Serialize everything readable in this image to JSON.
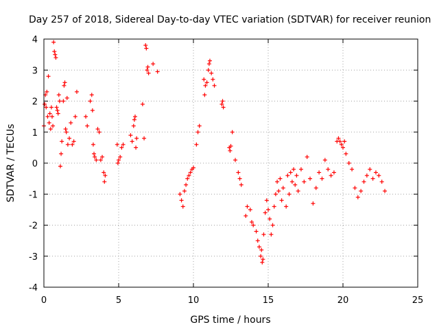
{
  "chart_data": {
    "type": "scatter",
    "title": "Day 257 of 2018, Sidereal Day-to-day VTEC variation (SDTVAR) for receiver reunion",
    "xlabel": "GPS time / hours",
    "ylabel": "SDTVAR / TECUs",
    "xlim": [
      0,
      25
    ],
    "ylim": [
      -4,
      4
    ],
    "xticks": [
      0,
      5,
      10,
      15,
      20,
      25
    ],
    "yticks": [
      -4,
      -3,
      -2,
      -1,
      0,
      1,
      2,
      3,
      4
    ],
    "xtick_labels": [
      "0",
      "5",
      "10",
      "15",
      "20",
      "25"
    ],
    "ytick_labels": [
      "-4",
      "-3",
      "-2",
      "-1",
      "0",
      "1",
      "2",
      "3",
      "4"
    ],
    "grid": true,
    "marker": "+",
    "color": "#ff0000",
    "series": [
      {
        "name": "SDTVAR",
        "points": [
          [
            0.0,
            1.2
          ],
          [
            0.05,
            1.9
          ],
          [
            0.1,
            2.2
          ],
          [
            0.15,
            1.8
          ],
          [
            0.2,
            2.3
          ],
          [
            0.25,
            1.5
          ],
          [
            0.3,
            2.8
          ],
          [
            0.35,
            1.3
          ],
          [
            0.4,
            1.6
          ],
          [
            0.45,
            1.1
          ],
          [
            0.5,
            1.8
          ],
          [
            0.55,
            1.5
          ],
          [
            0.6,
            1.2
          ],
          [
            0.65,
            3.9
          ],
          [
            0.7,
            3.6
          ],
          [
            0.75,
            3.5
          ],
          [
            0.8,
            3.4
          ],
          [
            0.85,
            1.8
          ],
          [
            0.9,
            1.7
          ],
          [
            0.95,
            1.6
          ],
          [
            1.0,
            2.2
          ],
          [
            1.05,
            2.0
          ],
          [
            1.1,
            -0.1
          ],
          [
            1.15,
            0.3
          ],
          [
            1.2,
            0.7
          ],
          [
            1.3,
            2.0
          ],
          [
            1.35,
            2.5
          ],
          [
            1.4,
            2.6
          ],
          [
            1.45,
            1.1
          ],
          [
            1.5,
            1.0
          ],
          [
            1.55,
            2.1
          ],
          [
            1.6,
            0.6
          ],
          [
            1.7,
            0.8
          ],
          [
            1.8,
            1.3
          ],
          [
            1.9,
            0.6
          ],
          [
            2.0,
            0.7
          ],
          [
            2.1,
            1.5
          ],
          [
            2.2,
            2.3
          ],
          [
            2.8,
            1.5
          ],
          [
            2.9,
            1.2
          ],
          [
            3.1,
            2.0
          ],
          [
            3.2,
            2.2
          ],
          [
            3.25,
            1.7
          ],
          [
            3.3,
            0.6
          ],
          [
            3.35,
            0.3
          ],
          [
            3.4,
            0.2
          ],
          [
            3.5,
            0.1
          ],
          [
            3.6,
            1.1
          ],
          [
            3.7,
            1.0
          ],
          [
            3.8,
            0.1
          ],
          [
            3.9,
            0.2
          ],
          [
            4.0,
            -0.3
          ],
          [
            4.05,
            -0.6
          ],
          [
            4.1,
            -0.4
          ],
          [
            4.9,
            0.6
          ],
          [
            4.95,
            0.0
          ],
          [
            5.0,
            0.1
          ],
          [
            5.1,
            0.2
          ],
          [
            5.2,
            0.5
          ],
          [
            5.3,
            0.6
          ],
          [
            5.8,
            0.9
          ],
          [
            5.9,
            0.7
          ],
          [
            6.0,
            1.2
          ],
          [
            6.05,
            1.4
          ],
          [
            6.1,
            1.5
          ],
          [
            6.15,
            0.5
          ],
          [
            6.2,
            0.8
          ],
          [
            6.6,
            1.9
          ],
          [
            6.7,
            0.8
          ],
          [
            6.8,
            3.8
          ],
          [
            6.85,
            3.7
          ],
          [
            6.9,
            3.0
          ],
          [
            6.95,
            3.1
          ],
          [
            7.0,
            2.9
          ],
          [
            7.3,
            3.2
          ],
          [
            7.6,
            2.95
          ],
          [
            9.1,
            -1.0
          ],
          [
            9.2,
            -1.2
          ],
          [
            9.3,
            -1.4
          ],
          [
            9.4,
            -0.9
          ],
          [
            9.5,
            -0.7
          ],
          [
            9.6,
            -0.5
          ],
          [
            9.7,
            -0.4
          ],
          [
            9.8,
            -0.3
          ],
          [
            9.9,
            -0.2
          ],
          [
            10.0,
            -0.15
          ],
          [
            10.2,
            0.6
          ],
          [
            10.3,
            1.0
          ],
          [
            10.4,
            1.2
          ],
          [
            10.7,
            2.7
          ],
          [
            10.75,
            2.2
          ],
          [
            10.8,
            2.5
          ],
          [
            10.9,
            2.6
          ],
          [
            11.0,
            3.0
          ],
          [
            11.05,
            3.2
          ],
          [
            11.1,
            3.3
          ],
          [
            11.2,
            2.9
          ],
          [
            11.3,
            2.7
          ],
          [
            11.4,
            2.5
          ],
          [
            11.9,
            1.9
          ],
          [
            11.95,
            2.0
          ],
          [
            12.0,
            1.8
          ],
          [
            12.4,
            0.5
          ],
          [
            12.45,
            0.4
          ],
          [
            12.5,
            0.55
          ],
          [
            12.6,
            1.0
          ],
          [
            12.8,
            0.1
          ],
          [
            13.0,
            -0.3
          ],
          [
            13.1,
            -0.5
          ],
          [
            13.2,
            -0.7
          ],
          [
            13.5,
            -1.7
          ],
          [
            13.6,
            -1.4
          ],
          [
            13.8,
            -1.5
          ],
          [
            13.9,
            -1.9
          ],
          [
            14.0,
            -2.0
          ],
          [
            14.2,
            -2.2
          ],
          [
            14.3,
            -2.5
          ],
          [
            14.4,
            -2.7
          ],
          [
            14.5,
            -3.0
          ],
          [
            14.55,
            -2.8
          ],
          [
            14.6,
            -3.2
          ],
          [
            14.65,
            -3.1
          ],
          [
            14.7,
            -2.3
          ],
          [
            14.8,
            -1.6
          ],
          [
            14.9,
            -1.2
          ],
          [
            15.0,
            -1.5
          ],
          [
            15.1,
            -1.8
          ],
          [
            15.2,
            -2.3
          ],
          [
            15.3,
            -2.0
          ],
          [
            15.4,
            -1.4
          ],
          [
            15.5,
            -1.0
          ],
          [
            15.6,
            -0.6
          ],
          [
            15.7,
            -0.9
          ],
          [
            15.8,
            -0.5
          ],
          [
            15.9,
            -1.2
          ],
          [
            16.0,
            -0.8
          ],
          [
            16.2,
            -1.4
          ],
          [
            16.3,
            -0.4
          ],
          [
            16.4,
            -1.0
          ],
          [
            16.5,
            -0.3
          ],
          [
            16.6,
            -0.6
          ],
          [
            16.7,
            -0.2
          ],
          [
            16.8,
            -0.7
          ],
          [
            16.9,
            -0.4
          ],
          [
            17.0,
            -0.9
          ],
          [
            17.2,
            -0.2
          ],
          [
            17.4,
            -0.6
          ],
          [
            17.6,
            0.2
          ],
          [
            17.8,
            -0.5
          ],
          [
            18.0,
            -1.3
          ],
          [
            18.2,
            -0.8
          ],
          [
            18.4,
            -0.3
          ],
          [
            18.6,
            -0.5
          ],
          [
            18.8,
            0.1
          ],
          [
            19.0,
            -0.2
          ],
          [
            19.2,
            -0.4
          ],
          [
            19.4,
            -0.3
          ],
          [
            19.6,
            0.7
          ],
          [
            19.7,
            0.8
          ],
          [
            19.8,
            0.7
          ],
          [
            19.9,
            0.6
          ],
          [
            20.0,
            0.5
          ],
          [
            20.1,
            0.7
          ],
          [
            20.2,
            0.3
          ],
          [
            20.4,
            0.0
          ],
          [
            20.6,
            -0.2
          ],
          [
            20.8,
            -0.8
          ],
          [
            21.0,
            -1.1
          ],
          [
            21.2,
            -0.9
          ],
          [
            21.4,
            -0.6
          ],
          [
            21.6,
            -0.4
          ],
          [
            21.8,
            -0.2
          ],
          [
            22.0,
            -0.5
          ],
          [
            22.2,
            -0.3
          ],
          [
            22.4,
            -0.4
          ],
          [
            22.6,
            -0.6
          ],
          [
            22.8,
            -0.9
          ]
        ]
      }
    ]
  }
}
